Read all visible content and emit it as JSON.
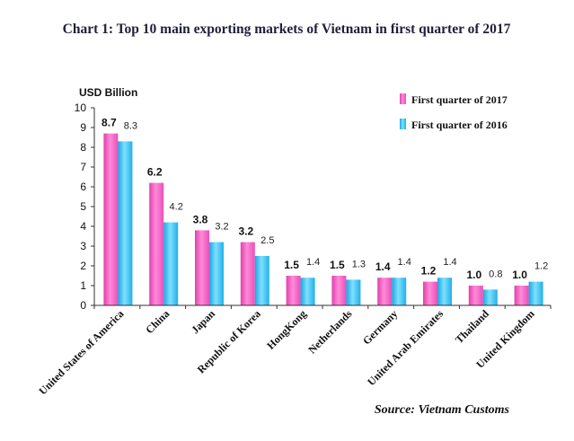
{
  "chart_data": {
    "type": "bar",
    "title": "Chart 1: Top 10 main exporting markets of Vietnam in first quarter of 2017",
    "ylabel": "USD Billion",
    "xlabel": "",
    "ylim": [
      0,
      10
    ],
    "yticks": [
      0,
      1,
      2,
      3,
      4,
      5,
      6,
      7,
      8,
      9,
      10
    ],
    "categories": [
      "United States of America",
      "China",
      "Japan",
      "Republic of Korea",
      "HongKong",
      "Netherlands",
      "Germany",
      "United Arab Emirates",
      "Thailand",
      "United Kingdom"
    ],
    "series": [
      {
        "name": "First quarter of 2017",
        "values": [
          8.7,
          6.2,
          3.8,
          3.2,
          1.5,
          1.5,
          1.4,
          1.2,
          1.0,
          1.0
        ],
        "labels": [
          "8.7",
          "6.2",
          "3.8",
          "3.2",
          "1.5",
          "1.5",
          "1.4",
          "1.2",
          "1.0",
          "1.0"
        ],
        "color": "#ff66cc"
      },
      {
        "name": "First quarter of 2016",
        "values": [
          8.3,
          4.2,
          3.2,
          2.5,
          1.4,
          1.3,
          1.4,
          1.4,
          0.8,
          1.2
        ],
        "labels": [
          "8.3",
          "4.2",
          "3.2",
          "2.5",
          "1.4",
          "1.3",
          "1.4",
          "1.4",
          "0.8",
          "1.2"
        ],
        "color": "#33ccff"
      }
    ],
    "legend_position": "top-right",
    "grid": false,
    "source": "Source: Vietnam Customs"
  }
}
